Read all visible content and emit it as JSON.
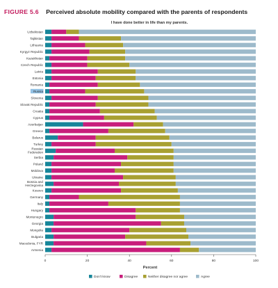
{
  "figure": {
    "number": "FIGURE 5.6",
    "title": "Perceived absolute mobility compared with the parents of respondents"
  },
  "chart_data": {
    "type": "bar",
    "orientation": "horizontal",
    "stacked": true,
    "title": "I have done better in life than my parents.",
    "xlabel": "Percent",
    "ylabel": "",
    "xlim": [
      0,
      100
    ],
    "xticks": [
      "0",
      "20",
      "40",
      "60",
      "80",
      "100"
    ],
    "grid": false,
    "legend_position": "bottom",
    "highlighted_category": "Russia",
    "categories": [
      "Uzbekistan",
      "Tajikistan",
      "Lithuania",
      "Kyrgyz Republic",
      "Kazakhstan",
      "Czech Republic",
      "Latvia",
      "Estonia",
      "Romania",
      "Russia",
      "Slovenia",
      "Slovak Republic",
      "Croatia",
      "Cyprus",
      "Azerbaijan",
      "Greece",
      "Belarus",
      "Turkey",
      "Russian Federation",
      "Serbia",
      "Poland",
      "Moldova",
      "Ukraine",
      "Bosnia and Herzegovina",
      "Kosovo",
      "Germany",
      "Italy",
      "Hungary",
      "Montenegro",
      "Georgia",
      "Mongolia",
      "Bulgaria",
      "Macedonia, FYR",
      "Armenia"
    ],
    "series": [
      {
        "name": "Don't know",
        "color": "#17869a",
        "values": [
          3,
          3,
          3,
          3,
          2,
          3,
          3,
          3,
          2,
          2,
          3,
          2,
          2,
          2,
          18,
          2,
          6,
          3,
          5,
          4,
          3,
          3,
          3,
          4,
          3,
          2,
          2,
          2,
          4,
          4,
          3,
          4,
          4,
          3
        ]
      },
      {
        "name": "Disagree",
        "color": "#c81e7c",
        "values": [
          7,
          13,
          16,
          18,
          18,
          17,
          22,
          21,
          23,
          17,
          22,
          22,
          24,
          26,
          24,
          28,
          18,
          21,
          28,
          35,
          33,
          30,
          34,
          31,
          33,
          14,
          28,
          41,
          39,
          51,
          37,
          34,
          44,
          61
        ]
      },
      {
        "name": "Neither disagree nor agree",
        "color": "#a8a032",
        "values": [
          6,
          20,
          18,
          17,
          18,
          20,
          18,
          19,
          20,
          28,
          24,
          25,
          26,
          25,
          14,
          27,
          35,
          36,
          28,
          22,
          25,
          28,
          25,
          27,
          27,
          48,
          34,
          21,
          23,
          11,
          27,
          30,
          21,
          9
        ]
      },
      {
        "name": "Agree",
        "color": "#9dbacb",
        "values": [
          84,
          64,
          63,
          62,
          62,
          60,
          57,
          57,
          55,
          53,
          51,
          51,
          48,
          47,
          44,
          43,
          41,
          40,
          39,
          39,
          39,
          39,
          38,
          38,
          37,
          36,
          36,
          36,
          34,
          34,
          33,
          32,
          31,
          27
        ]
      }
    ]
  }
}
